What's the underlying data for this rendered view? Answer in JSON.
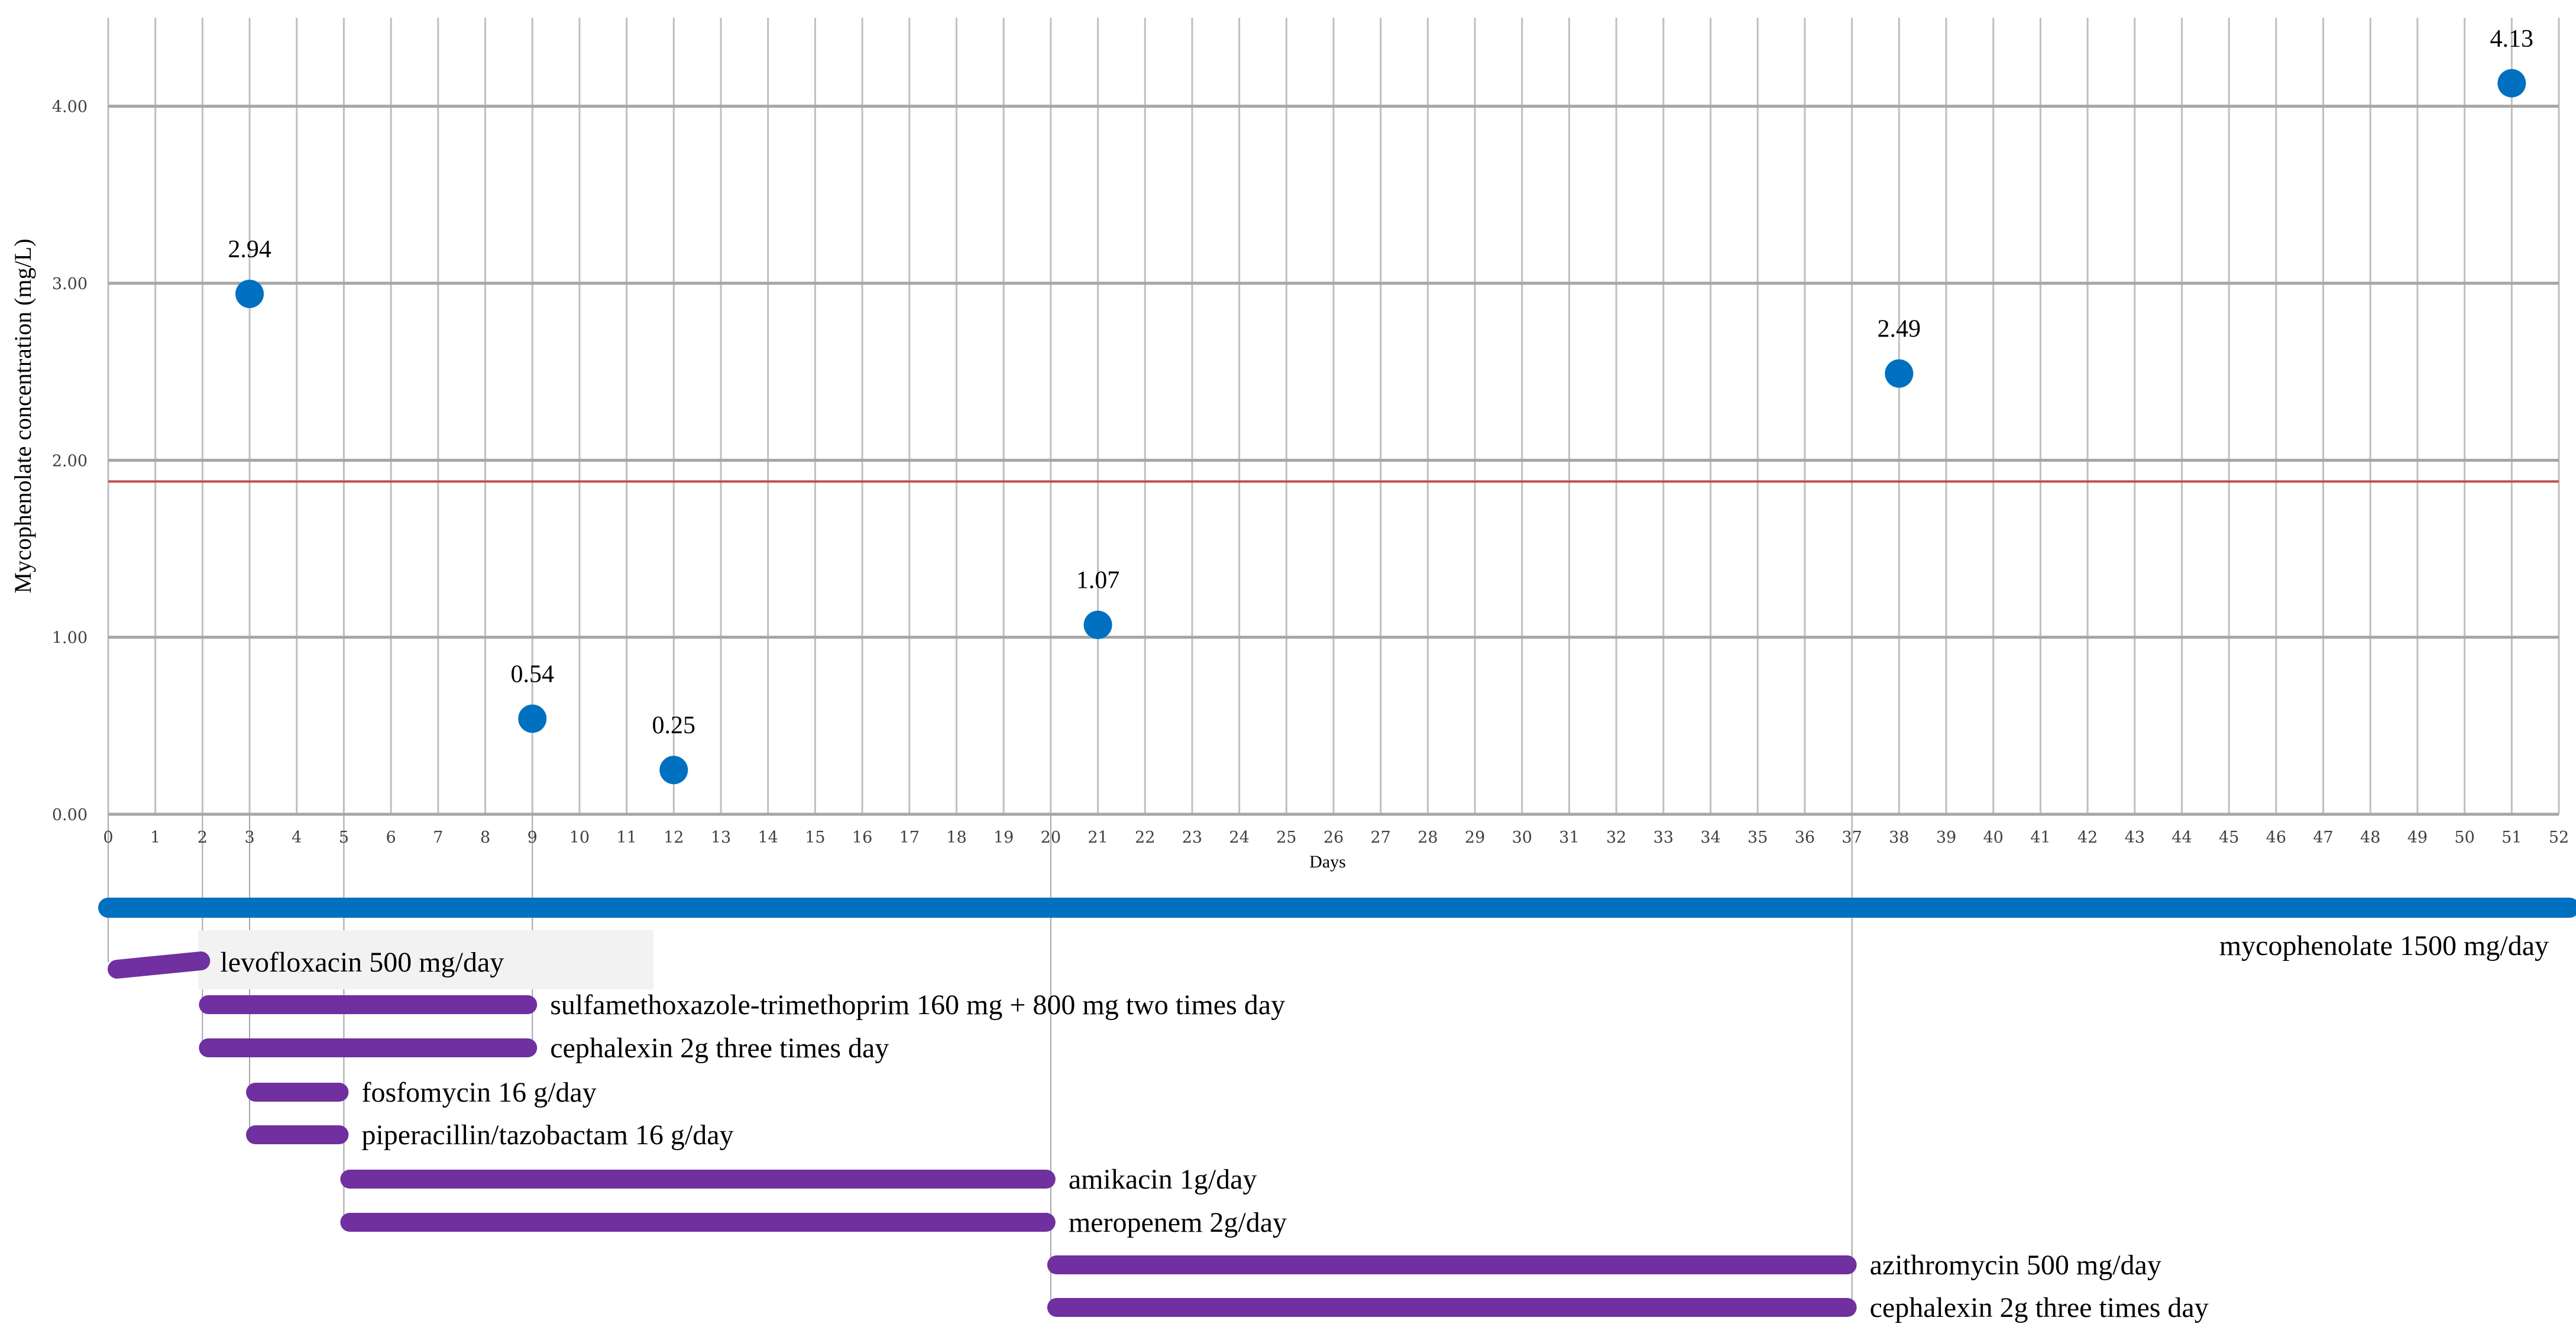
{
  "chart_data": {
    "type": "scatter",
    "title": "",
    "xlabel": "Days",
    "ylabel": "Mycophenolate concentration (mg/L)",
    "xlim": [
      0,
      52
    ],
    "ylim": [
      0,
      4.5
    ],
    "x_ticks": [
      "0",
      "1",
      "2",
      "3",
      "4",
      "5",
      "6",
      "7",
      "8",
      "9",
      "10",
      "11",
      "12",
      "13",
      "14",
      "15",
      "16",
      "17",
      "18",
      "19",
      "20",
      "21",
      "22",
      "23",
      "24",
      "25",
      "26",
      "27",
      "28",
      "29",
      "30",
      "31",
      "32",
      "33",
      "34",
      "35",
      "36",
      "37",
      "38",
      "39",
      "40",
      "41",
      "42",
      "43",
      "44",
      "45",
      "46",
      "47",
      "48",
      "49",
      "50",
      "51",
      "52"
    ],
    "y_ticks": [
      0,
      1,
      2,
      3,
      4
    ],
    "y_tick_labels": [
      "0.00",
      "1.00",
      "2.00",
      "3.00",
      "4.00"
    ],
    "grid": true,
    "reference_line": {
      "y": 1.88,
      "color": "#c0504d"
    },
    "points": [
      {
        "x": 3,
        "y": 2.94,
        "label": "2.94"
      },
      {
        "x": 9,
        "y": 0.54,
        "label": "0.54"
      },
      {
        "x": 12,
        "y": 0.25,
        "label": "0.25"
      },
      {
        "x": 21,
        "y": 1.07,
        "label": "1.07"
      },
      {
        "x": 38,
        "y": 2.49,
        "label": "2.49"
      },
      {
        "x": 51,
        "y": 4.13,
        "label": "4.13"
      }
    ],
    "point_color": "#0070c0",
    "treatments": [
      {
        "label": "mycophenolate 1500 mg/day",
        "start": 0,
        "end": 52,
        "color": "#0070c0"
      },
      {
        "label": "levofloxacin 500 mg/day",
        "start": 0,
        "end": 2,
        "color": "#7030a0"
      },
      {
        "label": "sulfamethoxazole-trimethoprim 160 mg + 800 mg two times day",
        "start": 2,
        "end": 9,
        "color": "#7030a0"
      },
      {
        "label": "cephalexin 2g three times day",
        "start": 2,
        "end": 9,
        "color": "#7030a0"
      },
      {
        "label": "fosfomycin 16 g/day",
        "start": 3,
        "end": 5,
        "color": "#7030a0"
      },
      {
        "label": "piperacillin/tazobactam 16 g/day",
        "start": 3,
        "end": 5,
        "color": "#7030a0"
      },
      {
        "label": "amikacin 1g/day",
        "start": 5,
        "end": 20,
        "color": "#7030a0"
      },
      {
        "label": "meropenem 2g/day",
        "start": 5,
        "end": 20,
        "color": "#7030a0"
      },
      {
        "label": "azithromycin 500 mg/day",
        "start": 20,
        "end": 37,
        "color": "#7030a0"
      },
      {
        "label": "cephalexin 2g three times day",
        "start": 20,
        "end": 37,
        "color": "#7030a0"
      }
    ]
  }
}
